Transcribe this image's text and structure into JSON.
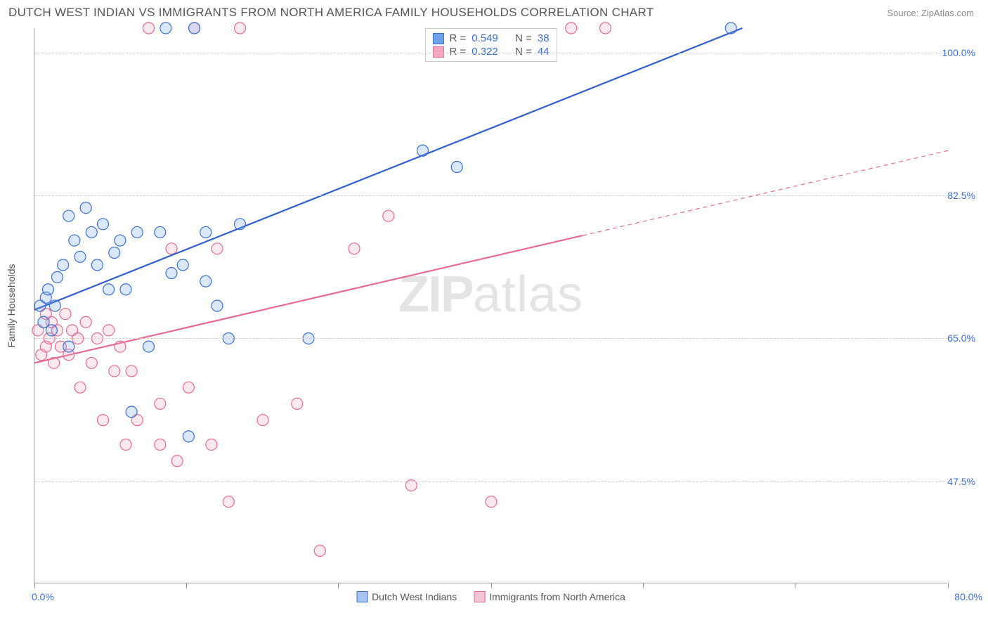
{
  "title": "DUTCH WEST INDIAN VS IMMIGRANTS FROM NORTH AMERICA FAMILY HOUSEHOLDS CORRELATION CHART",
  "source_label": "Source: ZipAtlas.com",
  "ylabel": "Family Households",
  "watermark": {
    "zip": "ZIP",
    "atlas": "atlas"
  },
  "chart": {
    "type": "scatter",
    "background_color": "#ffffff",
    "grid_color": "#cccccc",
    "axis_color": "#999999",
    "tick_label_color": "#3b6fd6",
    "xlim": [
      0,
      80
    ],
    "ylim": [
      35,
      103
    ],
    "x_tick_positions": [
      0,
      13.3,
      26.6,
      40,
      53.3,
      66.6,
      80
    ],
    "y_ticks": [
      47.5,
      65.0,
      82.5,
      100.0
    ],
    "y_tick_labels": [
      "47.5%",
      "65.0%",
      "82.5%",
      "100.0%"
    ],
    "xlim_labels": {
      "left": "0.0%",
      "right": "80.0%"
    },
    "marker_radius": 8,
    "marker_stroke_width": 1.2,
    "marker_fill_opacity": 0.25,
    "line_width": 2.2
  },
  "series": [
    {
      "key": "dutch",
      "label": "Dutch West Indians",
      "color": "#6ea3e8",
      "stroke": "#3b6fd6",
      "line_color": "#2f5fd0",
      "line_dash": "none",
      "stats": {
        "R": "0.549",
        "N": "38"
      },
      "regression": {
        "x1": 0,
        "y1": 68.5,
        "x2": 62,
        "y2": 103
      },
      "points": [
        [
          0.5,
          69
        ],
        [
          0.8,
          67
        ],
        [
          1,
          70
        ],
        [
          1.2,
          71
        ],
        [
          1.5,
          66
        ],
        [
          1.8,
          69
        ],
        [
          2,
          72.5
        ],
        [
          2.5,
          74
        ],
        [
          3,
          80
        ],
        [
          3,
          64
        ],
        [
          3.5,
          77
        ],
        [
          4,
          75
        ],
        [
          4.5,
          81
        ],
        [
          5,
          78
        ],
        [
          5.5,
          74
        ],
        [
          6,
          79
        ],
        [
          6.5,
          71
        ],
        [
          7,
          75.5
        ],
        [
          7.5,
          77
        ],
        [
          8,
          71
        ],
        [
          8.5,
          56
        ],
        [
          9,
          78
        ],
        [
          10,
          64
        ],
        [
          11,
          78
        ],
        [
          11.5,
          103
        ],
        [
          12,
          73
        ],
        [
          13,
          74
        ],
        [
          13.5,
          53
        ],
        [
          14,
          103
        ],
        [
          15,
          78
        ],
        [
          15,
          72
        ],
        [
          16,
          69
        ],
        [
          17,
          65
        ],
        [
          18,
          79
        ],
        [
          24,
          65
        ],
        [
          34,
          88
        ],
        [
          37,
          86
        ],
        [
          61,
          103
        ]
      ]
    },
    {
      "key": "immigrants",
      "label": "Immigrants from North America",
      "color": "#f4a8bd",
      "stroke": "#e86b8f",
      "line_color": "#e86b8f",
      "line_dash": "solid_then_dash",
      "stats": {
        "R": "0.322",
        "N": "44"
      },
      "regression": {
        "x1": 0,
        "y1": 62,
        "x2": 80,
        "y2": 88
      },
      "regression_solid_until_x": 48,
      "points": [
        [
          0.3,
          66
        ],
        [
          0.6,
          63
        ],
        [
          1,
          68
        ],
        [
          1,
          64
        ],
        [
          1.3,
          65
        ],
        [
          1.5,
          67
        ],
        [
          1.7,
          62
        ],
        [
          2,
          66
        ],
        [
          2.3,
          64
        ],
        [
          2.7,
          68
        ],
        [
          3,
          63
        ],
        [
          3.3,
          66
        ],
        [
          3.8,
          65
        ],
        [
          4,
          59
        ],
        [
          4.5,
          67
        ],
        [
          5,
          62
        ],
        [
          5.5,
          65
        ],
        [
          6,
          55
        ],
        [
          6.5,
          66
        ],
        [
          7,
          61
        ],
        [
          7.5,
          64
        ],
        [
          8,
          52
        ],
        [
          8.5,
          61
        ],
        [
          9,
          55
        ],
        [
          10,
          103
        ],
        [
          11,
          57
        ],
        [
          11,
          52
        ],
        [
          12,
          76
        ],
        [
          12.5,
          50
        ],
        [
          13.5,
          59
        ],
        [
          14,
          103
        ],
        [
          15.5,
          52
        ],
        [
          16,
          76
        ],
        [
          17,
          45
        ],
        [
          18,
          103
        ],
        [
          20,
          55
        ],
        [
          23,
          57
        ],
        [
          25,
          39
        ],
        [
          28,
          76
        ],
        [
          31,
          80
        ],
        [
          33,
          47
        ],
        [
          40,
          45
        ],
        [
          47,
          103
        ],
        [
          50,
          103
        ]
      ]
    }
  ],
  "legend": {
    "bottom": [
      {
        "label": "Dutch West Indians",
        "fill": "#a8c5f0",
        "stroke": "#3b6fd6"
      },
      {
        "label": "Immigrants from North America",
        "fill": "#f7c6d4",
        "stroke": "#e86b8f"
      }
    ],
    "stats_labels": {
      "R": "R =",
      "N": "N ="
    }
  }
}
